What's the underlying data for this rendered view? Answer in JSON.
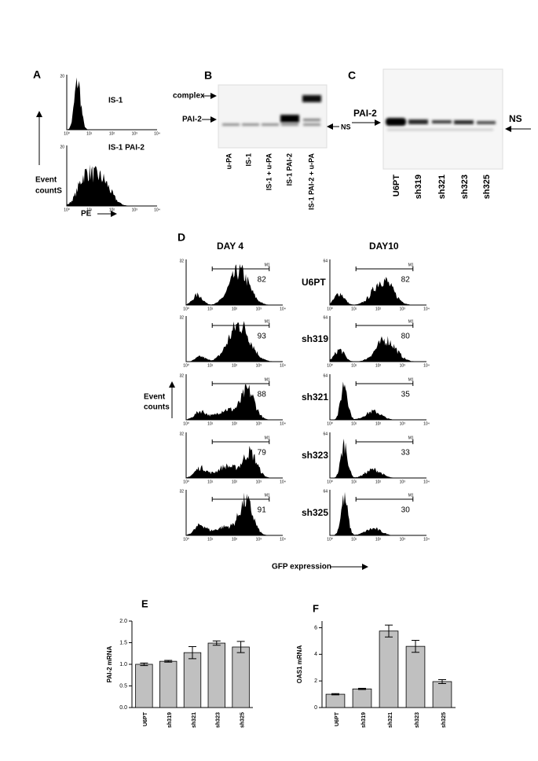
{
  "panels": {
    "A": {
      "label": "A",
      "plots": [
        {
          "title": "IS-1",
          "ymax": "20"
        },
        {
          "title": "IS-1 PAI-2",
          "ymax": "20"
        }
      ],
      "y_label": [
        "Event",
        "countS"
      ],
      "x_label": "PE"
    },
    "B": {
      "label": "B",
      "markers": [
        "complex",
        "PAI-2"
      ],
      "ns": "NS",
      "lanes": [
        "u-PA",
        "IS-1",
        "IS-1 + u-PA",
        "IS-1 PAI-2",
        "IS-1 PAI-2 + u-PA"
      ]
    },
    "C": {
      "label": "C",
      "marker": "PAI-2",
      "ns": "NS",
      "lanes": [
        "U6PT",
        "sh319",
        "sh321",
        "sh323",
        "sh325"
      ]
    },
    "D": {
      "label": "D",
      "columns": [
        "DAY 4",
        "DAY10"
      ],
      "marker_label": "M1",
      "y_label": [
        "Event",
        "counts"
      ],
      "x_label": "GFP expression",
      "rows": [
        {
          "name": "U6PT",
          "left": {
            "value": "82",
            "ymax": "32"
          },
          "right": {
            "value": "82",
            "ymax": "64"
          }
        },
        {
          "name": "sh319",
          "left": {
            "value": "93",
            "ymax": "32"
          },
          "right": {
            "value": "80",
            "ymax": "64"
          }
        },
        {
          "name": "sh321",
          "left": {
            "value": "88",
            "ymax": "32"
          },
          "right": {
            "value": "35",
            "ymax": "64"
          }
        },
        {
          "name": "sh323",
          "left": {
            "value": "79",
            "ymax": "32"
          },
          "right": {
            "value": "33",
            "ymax": "64"
          }
        },
        {
          "name": "sh325",
          "left": {
            "value": "91",
            "ymax": "32"
          },
          "right": {
            "value": "30",
            "ymax": "64"
          }
        }
      ]
    },
    "hist_xticks": [
      "10⁰",
      "10¹",
      "10²",
      "10³",
      "10⁴"
    ]
  },
  "chart_data": [
    {
      "type": "bar",
      "label": "E",
      "y_label": "PAI-2 mRNA",
      "categories": [
        "U6PT",
        "sh319",
        "sh321",
        "sh323",
        "sh325"
      ],
      "values": [
        1.0,
        1.07,
        1.27,
        1.49,
        1.4
      ],
      "errors": [
        0.03,
        0.02,
        0.14,
        0.05,
        0.13
      ],
      "color": "#c0c0c0",
      "ylim": [
        0,
        2.0
      ],
      "yticks": [
        {
          "value": 0,
          "label": "0.0"
        },
        0.5,
        {
          "value": 1,
          "label": "1.0"
        },
        1.5,
        {
          "value": 2,
          "label": "2.0"
        }
      ]
    },
    {
      "type": "bar",
      "label": "F",
      "y_label": "OAS1 mRNA",
      "categories": [
        "U6PT",
        "sh319",
        "sh321",
        "sh323",
        "sh325"
      ],
      "values": [
        1.0,
        1.4,
        5.75,
        4.6,
        1.95
      ],
      "errors": [
        0.05,
        0.05,
        0.45,
        0.45,
        0.15
      ],
      "color": "#c0c0c0",
      "ylim": [
        0,
        6.5
      ],
      "yticks": [
        0,
        2,
        4,
        6
      ]
    }
  ]
}
